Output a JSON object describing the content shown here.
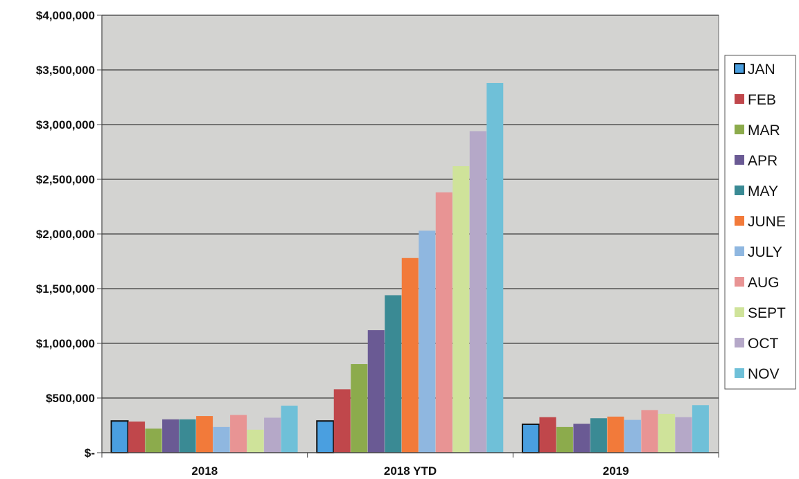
{
  "chart_data": {
    "type": "bar",
    "title": "",
    "xlabel": "",
    "ylabel": "",
    "categories": [
      "2018",
      "2018 YTD",
      "2019"
    ],
    "ylim": [
      0,
      4000000
    ],
    "yticks": [
      {
        "value": 0,
        "label": "$-"
      },
      {
        "value": 500000,
        "label": "$500,000"
      },
      {
        "value": 1000000,
        "label": "$1,000,000"
      },
      {
        "value": 1500000,
        "label": "$1,500,000"
      },
      {
        "value": 2000000,
        "label": "$2,000,000"
      },
      {
        "value": 2500000,
        "label": "$2,500,000"
      },
      {
        "value": 3000000,
        "label": "$3,000,000"
      },
      {
        "value": 3500000,
        "label": "$3,500,000"
      },
      {
        "value": 4000000,
        "label": "$4,000,000"
      }
    ],
    "grid": true,
    "legend_position": "right",
    "plot_background": "#d3d3d1",
    "series": [
      {
        "name": "JAN",
        "color": "#4a9fe0",
        "values": [
          290000,
          290000,
          260000
        ]
      },
      {
        "name": "FEB",
        "color": "#c0474b",
        "values": [
          285000,
          580000,
          325000
        ]
      },
      {
        "name": "MAR",
        "color": "#8cab4c",
        "values": [
          220000,
          810000,
          235000
        ]
      },
      {
        "name": "APR",
        "color": "#6a5a94",
        "values": [
          305000,
          1120000,
          265000
        ]
      },
      {
        "name": "MAY",
        "color": "#3a8a94",
        "values": [
          305000,
          1440000,
          315000
        ]
      },
      {
        "name": "JUNE",
        "color": "#f27a3a",
        "values": [
          335000,
          1780000,
          330000
        ]
      },
      {
        "name": "JULY",
        "color": "#8fb7e0",
        "values": [
          235000,
          2030000,
          300000
        ]
      },
      {
        "name": "AUG",
        "color": "#e89494",
        "values": [
          345000,
          2380000,
          390000
        ]
      },
      {
        "name": "SEPT",
        "color": "#cfe39a",
        "values": [
          210000,
          2620000,
          355000
        ]
      },
      {
        "name": "OCT",
        "color": "#b5a8c8",
        "values": [
          320000,
          2940000,
          325000
        ]
      },
      {
        "name": "NOV",
        "color": "#6fc0d8",
        "values": [
          430000,
          3380000,
          435000
        ]
      }
    ]
  }
}
